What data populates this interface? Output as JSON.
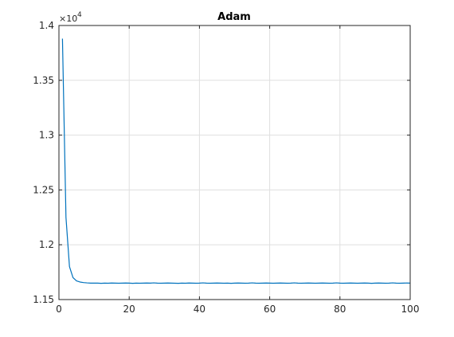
{
  "chart_data": {
    "type": "line",
    "title": "Adam",
    "xlabel": "",
    "ylabel": "",
    "xlim": [
      0,
      100
    ],
    "ylim": [
      11500,
      14000
    ],
    "y_multiplier_label": "×10",
    "y_multiplier_exponent": "4",
    "grid": true,
    "x_ticks": [
      0,
      20,
      40,
      60,
      80,
      100
    ],
    "x_tick_labels": [
      "0",
      "20",
      "40",
      "60",
      "80",
      "100"
    ],
    "y_ticks": [
      11500,
      12000,
      12500,
      13000,
      13500,
      14000
    ],
    "y_tick_labels": [
      "1.15",
      "1.2",
      "1.25",
      "1.3",
      "1.35",
      "1.4"
    ],
    "series": [
      {
        "color": "#0072BD",
        "x": [
          1,
          2,
          3,
          4,
          5,
          6,
          7,
          8,
          9,
          10,
          11,
          12,
          13,
          14,
          15,
          16,
          17,
          18,
          19,
          20,
          21,
          22,
          23,
          24,
          25,
          26,
          27,
          28,
          29,
          30,
          31,
          32,
          33,
          34,
          35,
          36,
          37,
          38,
          39,
          40,
          41,
          42,
          43,
          44,
          45,
          46,
          47,
          48,
          49,
          50,
          51,
          52,
          53,
          54,
          55,
          56,
          57,
          58,
          59,
          60,
          61,
          62,
          63,
          64,
          65,
          66,
          67,
          68,
          69,
          70,
          71,
          72,
          73,
          74,
          75,
          76,
          77,
          78,
          79,
          80,
          81,
          82,
          83,
          84,
          85,
          86,
          87,
          88,
          89,
          90,
          91,
          92,
          93,
          94,
          95,
          96,
          97,
          98,
          99,
          100
        ],
        "y": [
          13880,
          12250,
          11800,
          11700,
          11670,
          11660,
          11655,
          11652,
          11650,
          11650,
          11650,
          11648,
          11650,
          11649,
          11651,
          11650,
          11649,
          11650,
          11651,
          11650,
          11648,
          11650,
          11649,
          11650,
          11651,
          11650,
          11652,
          11650,
          11649,
          11650,
          11651,
          11650,
          11649,
          11648,
          11650,
          11649,
          11651,
          11650,
          11649,
          11650,
          11652,
          11650,
          11649,
          11650,
          11651,
          11650,
          11649,
          11650,
          11648,
          11650,
          11651,
          11650,
          11649,
          11650,
          11652,
          11650,
          11649,
          11650,
          11651,
          11650,
          11649,
          11650,
          11651,
          11650,
          11649,
          11650,
          11652,
          11650,
          11649,
          11650,
          11651,
          11650,
          11649,
          11650,
          11651,
          11650,
          11649,
          11650,
          11652,
          11650,
          11649,
          11650,
          11651,
          11650,
          11649,
          11650,
          11651,
          11650,
          11648,
          11650,
          11651,
          11650,
          11649,
          11650,
          11652,
          11650,
          11649,
          11650,
          11651,
          11650
        ]
      }
    ]
  }
}
